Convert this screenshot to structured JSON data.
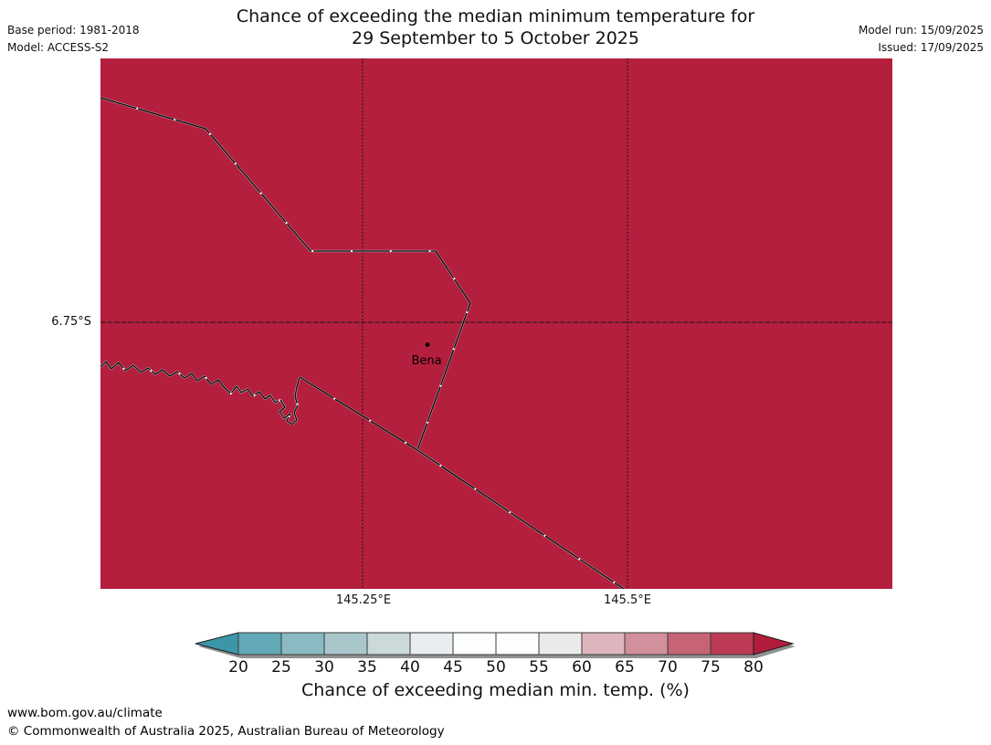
{
  "header": {
    "title_line1": "Chance of exceeding the median minimum temperature for",
    "title_line2": "29 September to 5 October 2025",
    "base_period": "Base period: 1981-2018",
    "model": "Model: ACCESS-S2",
    "model_run": "Model run: 15/09/2025",
    "issued": "Issued: 17/09/2025"
  },
  "map": {
    "fill_color": "#b41f3e",
    "border_color": "#0c0c0c",
    "lat_label": "6.75°S",
    "lon_label_1": "145.25°E",
    "lon_label_2": "145.5°E",
    "place_label": "Bena"
  },
  "colorbar": {
    "ticks": [
      "20",
      "25",
      "30",
      "35",
      "40",
      "45",
      "50",
      "55",
      "60",
      "65",
      "70",
      "75",
      "80"
    ],
    "cell_colors": [
      "#62a9b7",
      "#8abac2",
      "#a9c7cb",
      "#ccd9da",
      "#e8eeef",
      "#fdfefe",
      "#fefefe",
      "#ebe9e9",
      "#ddb6bd",
      "#d1909b",
      "#c66374",
      "#bc3a54"
    ],
    "arrow_left_color": "#3d96a8",
    "arrow_right_color": "#b21d3c",
    "label": "Chance of exceeding median min. temp. (%)"
  },
  "footer": {
    "url": "www.bom.gov.au/climate",
    "copyright": "© Commonwealth of Australia 2025, Australian Bureau of Meteorology"
  },
  "chart_data": {
    "type": "heatmap",
    "title": "Chance of exceeding the median minimum temperature for 29 September to 5 October 2025",
    "subtitle_meta": [
      "Base period: 1981-2018",
      "Model: ACCESS-S2",
      "Model run: 15/09/2025",
      "Issued: 17/09/2025"
    ],
    "colorbar_label": "Chance of exceeding median min. temp. (%)",
    "colorbar_ticks": [
      20,
      25,
      30,
      35,
      40,
      45,
      50,
      55,
      60,
      65,
      70,
      75,
      80
    ],
    "colorbar_range": [
      20,
      80
    ],
    "colorbar_extend": "both",
    "x_axis": {
      "label": "longitude",
      "ticks": [
        "145.25°E",
        "145.5°E"
      ],
      "gridlines": "dotted"
    },
    "y_axis": {
      "label": "latitude",
      "ticks": [
        "6.75°S"
      ],
      "gridlines": "dotted"
    },
    "values": "uniform: entire visible region exceeds 80% (dark red, beyond top of scale)",
    "places": [
      {
        "name": "Bena",
        "approx_lon": 145.31,
        "approx_lat": -6.79
      }
    ],
    "legend_position": "bottom"
  }
}
